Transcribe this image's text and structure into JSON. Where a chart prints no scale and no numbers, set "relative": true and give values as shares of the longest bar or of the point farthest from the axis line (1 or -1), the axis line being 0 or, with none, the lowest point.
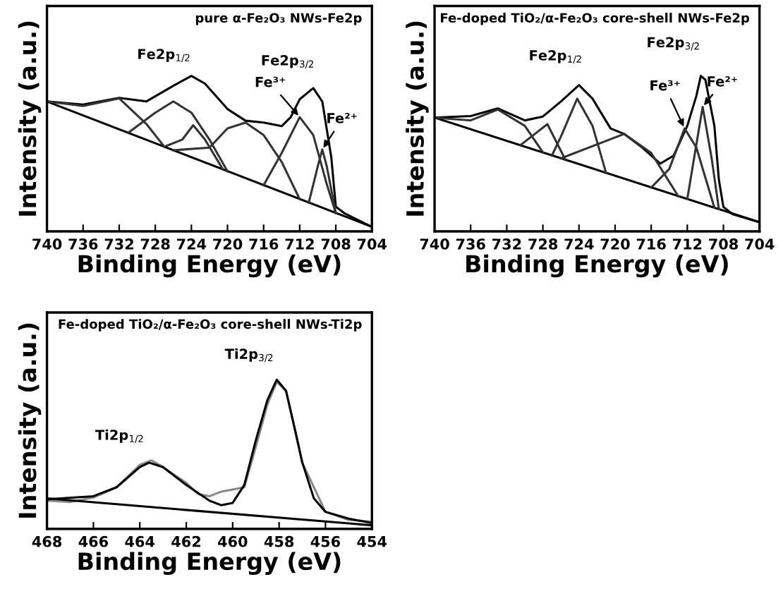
{
  "chart_data": [
    {
      "type": "line",
      "title": "pure α-Fe₂O₃ NWs-Fe2p",
      "xlabel": "Binding Energy (eV)",
      "ylabel": "Intensity (a.u.)",
      "relative": true,
      "tick_labels": "x",
      "xlim": [
        740,
        704
      ],
      "xticks": [
        740,
        736,
        732,
        728,
        724,
        720,
        716,
        712,
        708,
        704
      ],
      "series": [
        {
          "color": "#000000",
          "x": [
            740,
            736,
            732,
            729,
            726,
            724,
            722.5,
            720,
            718,
            716,
            714,
            713,
            712,
            710.5,
            709.5,
            708.5,
            708,
            707,
            704
          ],
          "values": [
            0.836,
            0.816,
            0.859,
            0.836,
            0.937,
            1.0,
            0.951,
            0.787,
            0.712,
            0.7,
            0.677,
            0.735,
            0.85,
            0.922,
            0.836,
            0.476,
            0.159,
            0.115,
            0.029
          ]
        },
        {
          "color": "#000000",
          "x": [
            740,
            704
          ],
          "values": [
            0.836,
            0.029
          ]
        },
        {
          "color": "#333333",
          "x": [
            740,
            736,
            732,
            729,
            727
          ],
          "values": [
            0.836,
            0.807,
            0.856,
            0.692,
            0.545
          ]
        },
        {
          "color": "#333333",
          "x": [
            731,
            728,
            726,
            724,
            722,
            720
          ],
          "values": [
            0.634,
            0.764,
            0.836,
            0.764,
            0.591,
            0.386
          ]
        },
        {
          "color": "#333333",
          "x": [
            727,
            725,
            723.8,
            722.5,
            720.5
          ],
          "values": [
            0.545,
            0.591,
            0.683,
            0.591,
            0.398
          ]
        },
        {
          "color": "#333333",
          "x": [
            726,
            722,
            720,
            718,
            716,
            714,
            712
          ],
          "values": [
            0.522,
            0.539,
            0.663,
            0.7,
            0.62,
            0.447,
            0.207
          ]
        },
        {
          "color": "#333333",
          "x": [
            716,
            714,
            712,
            710.5,
            709,
            708
          ],
          "values": [
            0.297,
            0.504,
            0.735,
            0.62,
            0.303,
            0.118
          ]
        },
        {
          "color": "#333333",
          "x": [
            711,
            710,
            709.5,
            709,
            708
          ],
          "values": [
            0.184,
            0.418,
            0.527,
            0.418,
            0.118
          ]
        }
      ],
      "annotations": [
        {
          "text": "Fe2p$_{1/2}$",
          "x": 724,
          "y": 1.0
        },
        {
          "text": "Fe2p$_{3/2}$",
          "x": 710.5,
          "y": 0.922
        },
        {
          "text": "Fe³⁺",
          "x": 712,
          "y": 0.735
        },
        {
          "text": "Fe²⁺",
          "x": 709.5,
          "y": 0.527
        }
      ]
    },
    {
      "type": "line",
      "title": "Fe-doped TiO₂/α-Fe₂O₃ core-shell NWs-Fe2p",
      "xlabel": "Binding Energy (eV)",
      "ylabel": "Intensity (a.u.)",
      "relative": true,
      "tick_labels": "x",
      "xlim": [
        740,
        704
      ],
      "xticks": [
        740,
        736,
        732,
        728,
        724,
        720,
        716,
        712,
        708,
        704
      ],
      "series": [
        {
          "color": "#000000",
          "x": [
            740,
            736,
            733,
            730,
            728,
            726,
            724,
            722.5,
            720.5,
            719,
            717,
            715,
            713.5,
            712,
            711,
            710.5,
            710,
            709,
            708.5,
            708,
            707,
            704
          ],
          "values": [
            0.732,
            0.742,
            0.791,
            0.714,
            0.739,
            0.836,
            0.941,
            0.854,
            0.662,
            0.627,
            0.54,
            0.436,
            0.488,
            0.679,
            0.871,
            1.0,
            0.976,
            0.679,
            0.331,
            0.157,
            0.111,
            0.059
          ]
        },
        {
          "color": "#000000",
          "x": [
            740,
            704
          ],
          "values": [
            0.732,
            0.059
          ]
        },
        {
          "color": "#333333",
          "x": [
            740,
            736,
            733,
            730,
            728
          ],
          "values": [
            0.732,
            0.714,
            0.784,
            0.679,
            0.509
          ]
        },
        {
          "color": "#333333",
          "x": [
            730.5,
            727.5,
            725.5
          ],
          "values": [
            0.554,
            0.69,
            0.46
          ]
        },
        {
          "color": "#333333",
          "x": [
            727,
            726,
            724.2,
            722.5,
            721
          ],
          "values": [
            0.488,
            0.61,
            0.854,
            0.679,
            0.376
          ]
        },
        {
          "color": "#333333",
          "x": [
            726,
            719,
            716,
            713
          ],
          "values": [
            0.47,
            0.627,
            0.505,
            0.226
          ]
        },
        {
          "color": "#333333",
          "x": [
            716,
            714,
            712.3,
            711,
            709
          ],
          "values": [
            0.282,
            0.401,
            0.662,
            0.54,
            0.153
          ]
        },
        {
          "color": "#333333",
          "x": [
            712,
            710.3,
            709.3,
            708.5
          ],
          "values": [
            0.209,
            0.801,
            0.47,
            0.143
          ]
        }
      ],
      "annotations": [
        {
          "text": "Fe2p$_{1/2}$",
          "x": 724.2,
          "y": 0.941
        },
        {
          "text": "Fe2p$_{3/2}$",
          "x": 710.5,
          "y": 1.0
        },
        {
          "text": "Fe³⁺",
          "x": 712.3,
          "y": 0.662
        },
        {
          "text": "Fe²⁺",
          "x": 710.3,
          "y": 0.801
        }
      ]
    },
    {
      "type": "line",
      "title": "Fe-doped TiO₂/α-Fe₂O₃ core-shell NWs-Ti2p",
      "xlabel": "Binding Energy (eV)",
      "ylabel": "Intensity (a.u.)",
      "relative": true,
      "tick_labels": "x",
      "xlim": [
        468,
        454
      ],
      "xticks": [
        468,
        466,
        464,
        462,
        460,
        458,
        456,
        454
      ],
      "series": [
        {
          "color": "#888888",
          "x": [
            468,
            467,
            466,
            465,
            464,
            463.5,
            463,
            462,
            461.5,
            461,
            460.5,
            460,
            459.5,
            459,
            458.5,
            458.1,
            457.7,
            457,
            456,
            455,
            454
          ],
          "values": [
            0.189,
            0.18,
            0.21,
            0.279,
            0.429,
            0.459,
            0.414,
            0.309,
            0.234,
            0.219,
            0.249,
            0.264,
            0.279,
            0.55,
            0.835,
            0.985,
            0.925,
            0.444,
            0.114,
            0.06,
            0.048
          ]
        },
        {
          "color": "#000000",
          "x": [
            468,
            466,
            465,
            464,
            463.6,
            463,
            462,
            461,
            460.5,
            460,
            459.5,
            459,
            458.5,
            458.1,
            457.7,
            457.3,
            457,
            456.5,
            456,
            455,
            454
          ],
          "values": [
            0.198,
            0.219,
            0.279,
            0.414,
            0.444,
            0.414,
            0.294,
            0.189,
            0.159,
            0.174,
            0.294,
            0.595,
            0.865,
            1.0,
            0.925,
            0.655,
            0.444,
            0.204,
            0.114,
            0.069,
            0.039
          ]
        },
        {
          "color": "#000000",
          "x": [
            468,
            454
          ],
          "values": [
            0.204,
            0.024
          ]
        }
      ],
      "annotations": [
        {
          "text": "Ti2p$_{1/2}$",
          "x": 463.6,
          "y": 0.444
        },
        {
          "text": "Ti2p$_{3/2}$",
          "x": 458.1,
          "y": 1.0
        }
      ]
    }
  ]
}
